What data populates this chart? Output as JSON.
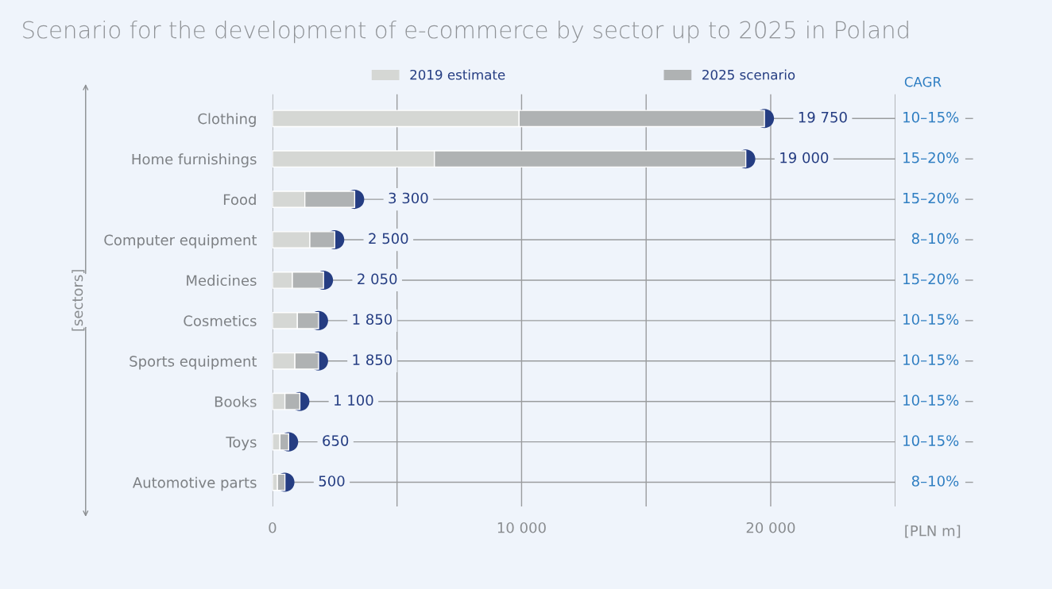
{
  "chart_data": {
    "type": "bar",
    "orientation": "horizontal",
    "stacked": true,
    "title": "Scenario for the development of e-commerce by sector up to 2025 in Poland",
    "xlabel": "[PLN m]",
    "ylabel": "[sectors]",
    "categories": [
      "Clothing",
      "Home furnishings",
      "Food",
      "Computer equipment",
      "Medicines",
      "Cosmetics",
      "Sports equipment",
      "Books",
      "Toys",
      "Automotive parts"
    ],
    "series": [
      {
        "name": "2019 estimate",
        "color": "#d5d7d4",
        "values": [
          9900,
          6500,
          1300,
          1500,
          800,
          1000,
          900,
          500,
          300,
          200
        ]
      },
      {
        "name": "2025 scenario",
        "color": "#afb2b3",
        "values": [
          9850,
          12500,
          2000,
          1000,
          1250,
          850,
          950,
          600,
          350,
          300
        ]
      },
      {
        "type": "scatter",
        "color": "#253d82",
        "values": [
          19750,
          19000,
          3300,
          2500,
          2050,
          1850,
          1850,
          1100,
          650,
          500
        ],
        "value_labels": [
          "19 750",
          "19 000",
          "3 300",
          "2 500",
          "2 050",
          "1 850",
          "1 850",
          "1 100",
          "650",
          "500"
        ]
      }
    ],
    "xlim": [
      0,
      25000
    ],
    "xticks": [
      0,
      {
        "value": 5000,
        "label": null
      },
      {
        "value": 10000,
        "label": "10 000"
      },
      {
        "value": 15000,
        "label": null
      },
      {
        "value": 20000,
        "label": "20 000"
      },
      {
        "value": 25000,
        "label": null
      }
    ],
    "grid": true,
    "legend": "top",
    "marker": "circle",
    "annotations": [
      "CAGR",
      "10–15%",
      "15–20%",
      "15–20%",
      "8–10%",
      "15–20%",
      "10–15%",
      "10–15%",
      "10–15%",
      "10–15%",
      "8–10%"
    ]
  }
}
